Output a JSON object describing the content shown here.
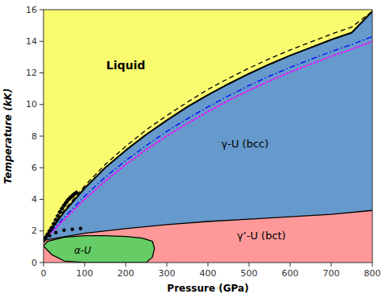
{
  "chart_data": {
    "type": "phase_diagram",
    "title": "",
    "xlabel": "Pressure (GPa)",
    "ylabel": "Temperature (kK)",
    "xlim": [
      0,
      800
    ],
    "ylim": [
      0,
      16
    ],
    "xticks": [
      0,
      100,
      200,
      300,
      400,
      500,
      600,
      700,
      800
    ],
    "yticks": [
      0,
      2,
      4,
      6,
      8,
      10,
      12,
      14,
      16
    ],
    "grid": false,
    "series": [
      {
        "type": "line",
        "color": "black",
        "line_style": "solid",
        "x": [
          0,
          50,
          100,
          150,
          200,
          250,
          300,
          350,
          400,
          450,
          500,
          550,
          600,
          650,
          700,
          750,
          800
        ],
        "values": [
          1.405,
          3.2,
          4.7,
          6.0,
          7.1,
          8.1,
          9.0,
          9.85,
          10.6,
          11.3,
          11.95,
          12.55,
          13.1,
          13.6,
          14.1,
          14.55,
          15.9
        ]
      },
      {
        "type": "line",
        "color": "black",
        "line_style": "dashed",
        "x": [
          0,
          50,
          100,
          150,
          200,
          250,
          300,
          350,
          400,
          450,
          500,
          550,
          600,
          650,
          700,
          750,
          800
        ],
        "values": [
          1.405,
          3.3,
          4.85,
          6.2,
          7.35,
          8.4,
          9.3,
          10.15,
          10.95,
          11.65,
          12.3,
          12.9,
          13.45,
          13.95,
          14.45,
          14.9,
          15.9
        ]
      },
      {
        "type": "line",
        "color": "blue",
        "line_style": "dashdot",
        "x": [
          0,
          50,
          100,
          150,
          200,
          250,
          300,
          350,
          400,
          450,
          500,
          550,
          600,
          650,
          700,
          750,
          800
        ],
        "values": [
          1.405,
          2.85,
          4.2,
          5.4,
          6.45,
          7.4,
          8.3,
          9.1,
          9.85,
          10.55,
          11.2,
          11.8,
          12.35,
          12.85,
          13.35,
          13.8,
          14.3
        ]
      },
      {
        "type": "line",
        "color": "magenta",
        "line_style": "dotted",
        "x": [
          0,
          50,
          100,
          150,
          200,
          250,
          300,
          350,
          400,
          450,
          500,
          550,
          600,
          650,
          700,
          750,
          800
        ],
        "values": [
          1.405,
          2.7,
          4.0,
          5.15,
          6.2,
          7.15,
          8.0,
          8.8,
          9.55,
          10.25,
          10.9,
          11.5,
          12.05,
          12.55,
          13.05,
          13.5,
          14.0
        ]
      },
      {
        "type": "line",
        "color": "black",
        "line_style": "solid",
        "x": [
          0,
          100,
          200,
          300,
          400,
          500,
          600,
          700,
          800
        ],
        "values": [
          1.405,
          1.85,
          2.15,
          2.4,
          2.6,
          2.75,
          2.9,
          3.05,
          3.3
        ]
      },
      {
        "type": "polygon",
        "color": "black",
        "line_style": "solid",
        "x": [
          0,
          20,
          50,
          100,
          150,
          200,
          250,
          265,
          270,
          265,
          240,
          200,
          150,
          100,
          50,
          10,
          0
        ],
        "values": [
          1.05,
          0.5,
          0.1,
          0.0,
          0.0,
          0.0,
          0.0,
          0.35,
          0.9,
          1.35,
          1.55,
          1.65,
          1.7,
          1.7,
          1.6,
          1.35,
          1.05
        ]
      },
      {
        "type": "scatter",
        "color": "black",
        "marker": "diamond",
        "x": [
          0,
          5,
          10,
          15,
          20,
          25,
          30,
          35,
          40,
          45,
          50,
          55,
          60,
          65,
          70,
          75,
          80
        ],
        "values": [
          1.405,
          1.58,
          1.78,
          2.0,
          2.2,
          2.45,
          2.7,
          2.95,
          3.2,
          3.42,
          3.62,
          3.8,
          3.97,
          4.1,
          4.22,
          4.33,
          4.42
        ]
      },
      {
        "type": "scatter",
        "color": "black",
        "marker": "circle",
        "x": [
          0,
          15,
          30,
          50,
          70,
          90
        ],
        "values": [
          1.405,
          1.7,
          1.9,
          2.05,
          2.1,
          2.15
        ]
      }
    ],
    "regions": [
      {
        "text": "Liquid",
        "color": "#FAFA6E",
        "x": 200,
        "y": 12.5
      },
      {
        "text": "γ-U (bcc)",
        "color": "#6699CC",
        "x": 490,
        "y": 7.5
      },
      {
        "text": "γ’-U (bct)",
        "color": "#FF9999",
        "x": 530,
        "y": 1.7
      },
      {
        "text": "α-U",
        "color": "#66CC66",
        "x": 95,
        "y": 0.75
      }
    ]
  }
}
